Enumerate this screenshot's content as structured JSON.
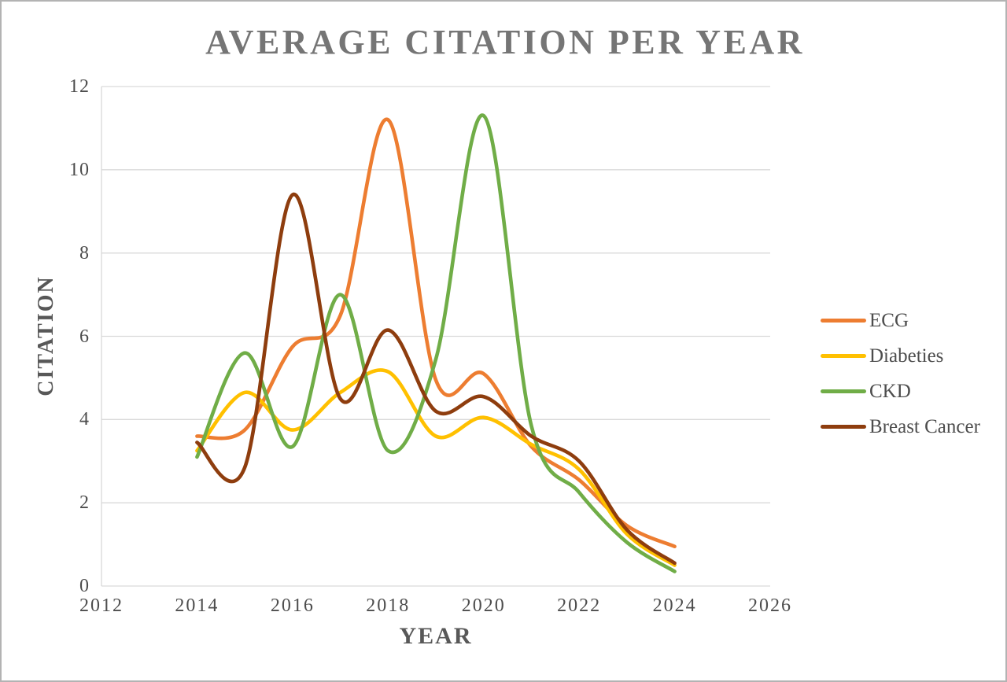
{
  "title": "AVERAGE CITATION PER YEAR",
  "x_axis": {
    "label": "YEAR",
    "ticks": [
      "2012",
      "2014",
      "2016",
      "2018",
      "2020",
      "2022",
      "2024",
      "2026"
    ]
  },
  "y_axis": {
    "label": "CITATION",
    "ticks": [
      "0",
      "2",
      "4",
      "6",
      "8",
      "10",
      "12"
    ]
  },
  "legend": {
    "position": "right",
    "items": [
      "ECG",
      "Diabeties",
      "CKD",
      "Breast Cancer"
    ]
  },
  "colors": {
    "grid": "#d9d9d9",
    "axis_line": "#d9d9d9",
    "tick_text": "#4d4d4d",
    "title_text": "#757575",
    "axis_title_text": "#585858"
  },
  "chart_data": {
    "type": "line",
    "smooth": true,
    "title": "AVERAGE CITATION PER YEAR",
    "xlabel": "YEAR",
    "ylabel": "CITATION",
    "xlim": [
      2012,
      2026
    ],
    "ylim": [
      0,
      12
    ],
    "x_tick_step": 2,
    "y_tick_step": 2,
    "grid": "horizontal",
    "legend_position": "right",
    "x": [
      2014,
      2015,
      2016,
      2017,
      2018,
      2019,
      2020,
      2021,
      2022,
      2023,
      2024
    ],
    "series": [
      {
        "name": "ECG",
        "color": "#ED7D31",
        "values": [
          3.6,
          3.75,
          5.75,
          6.5,
          11.2,
          4.95,
          5.1,
          3.35,
          2.55,
          1.45,
          0.95
        ]
      },
      {
        "name": "Diabeties",
        "color": "#FFC000",
        "values": [
          3.25,
          4.65,
          3.75,
          4.65,
          5.15,
          3.6,
          4.05,
          3.4,
          2.8,
          1.25,
          0.5
        ]
      },
      {
        "name": "CKD",
        "color": "#70AD47",
        "values": [
          3.1,
          5.6,
          3.35,
          7.0,
          3.25,
          5.45,
          11.3,
          3.85,
          2.25,
          1.05,
          0.35
        ]
      },
      {
        "name": "Breast Cancer",
        "color": "#8E3D0E",
        "values": [
          3.45,
          2.85,
          9.4,
          4.5,
          6.15,
          4.2,
          4.55,
          3.6,
          3.0,
          1.35,
          0.55
        ]
      }
    ]
  }
}
